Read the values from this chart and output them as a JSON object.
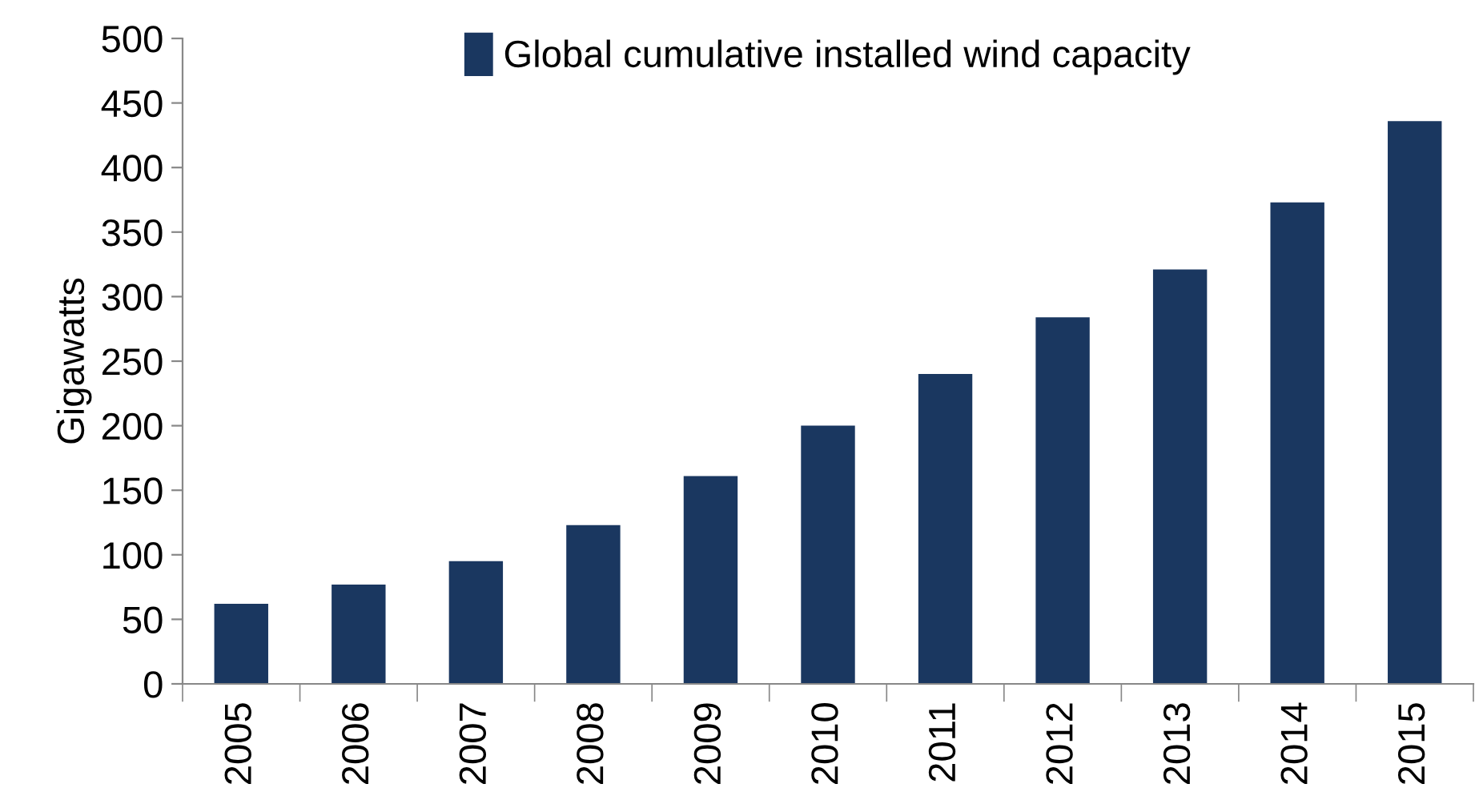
{
  "chart_data": {
    "type": "bar",
    "ylabel": "Gigawatts",
    "categories": [
      "2005",
      "2006",
      "2007",
      "2008",
      "2009",
      "2010",
      "2011",
      "2012",
      "2013",
      "2014",
      "2015"
    ],
    "series": [
      {
        "name": "Global cumulative installed wind capacity",
        "color": "#1a3760",
        "values": [
          62,
          77,
          95,
          123,
          161,
          200,
          240,
          284,
          321,
          373,
          436
        ]
      }
    ],
    "ylim": [
      0,
      500
    ],
    "yticks": [
      0,
      50,
      100,
      150,
      200,
      250,
      300,
      350,
      400,
      450,
      500
    ],
    "grid": false,
    "legend": "top"
  }
}
